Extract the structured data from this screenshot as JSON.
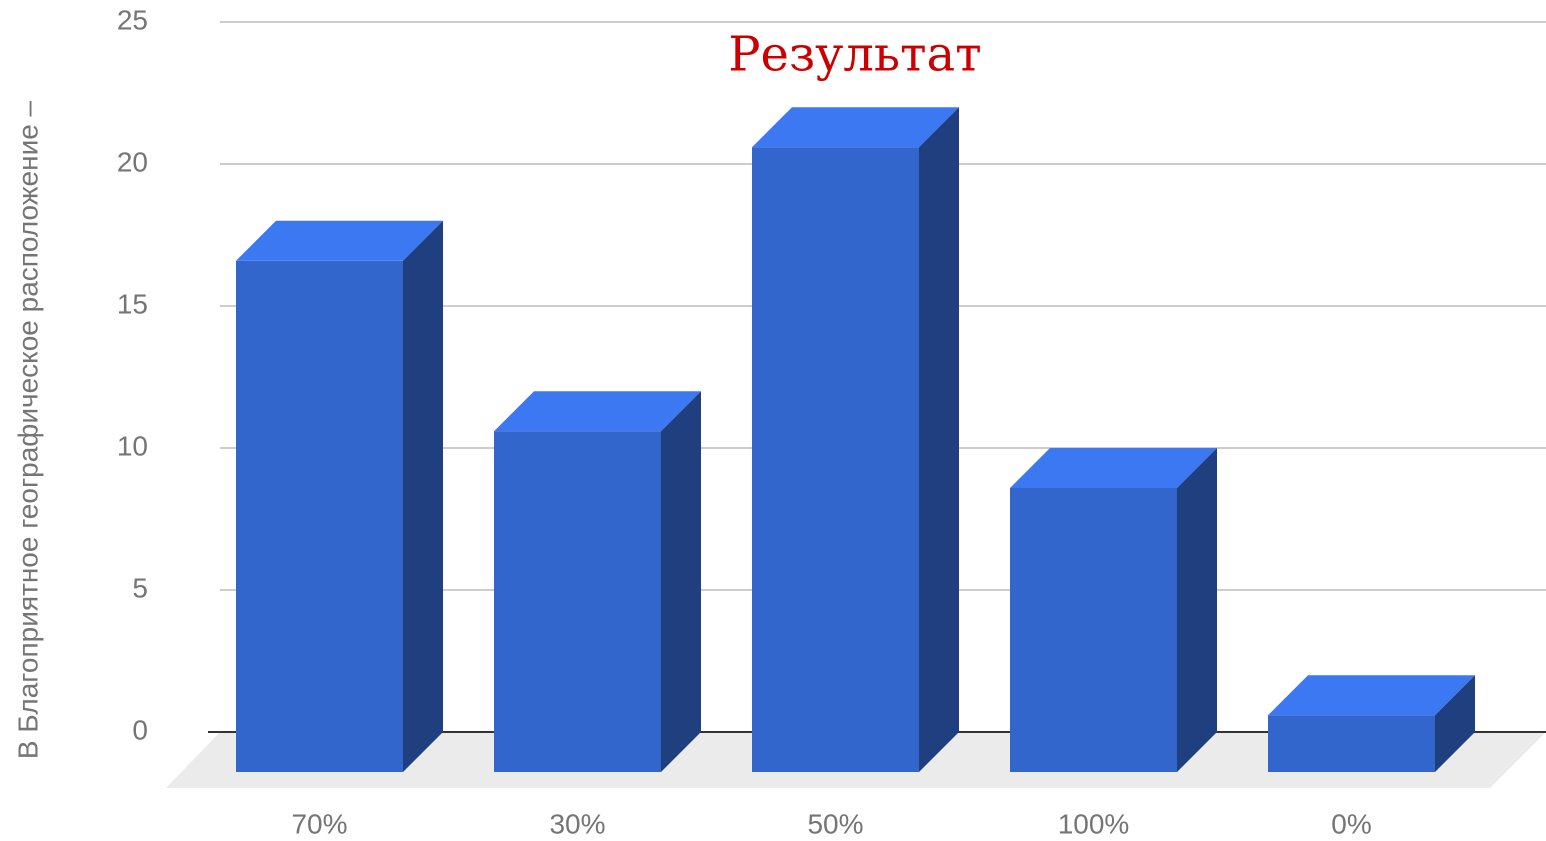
{
  "chart_data": {
    "type": "bar",
    "title": "Результат",
    "y_label": "В Благоприятное географическое расположение –",
    "categories": [
      "70%",
      "30%",
      "50%",
      "100%",
      "0%"
    ],
    "values": [
      18,
      12,
      22,
      10,
      2
    ],
    "color": "#3366cc",
    "ylim": [
      0,
      25
    ],
    "yticks": [
      0,
      5,
      10,
      15,
      20,
      25
    ],
    "grid": true
  }
}
